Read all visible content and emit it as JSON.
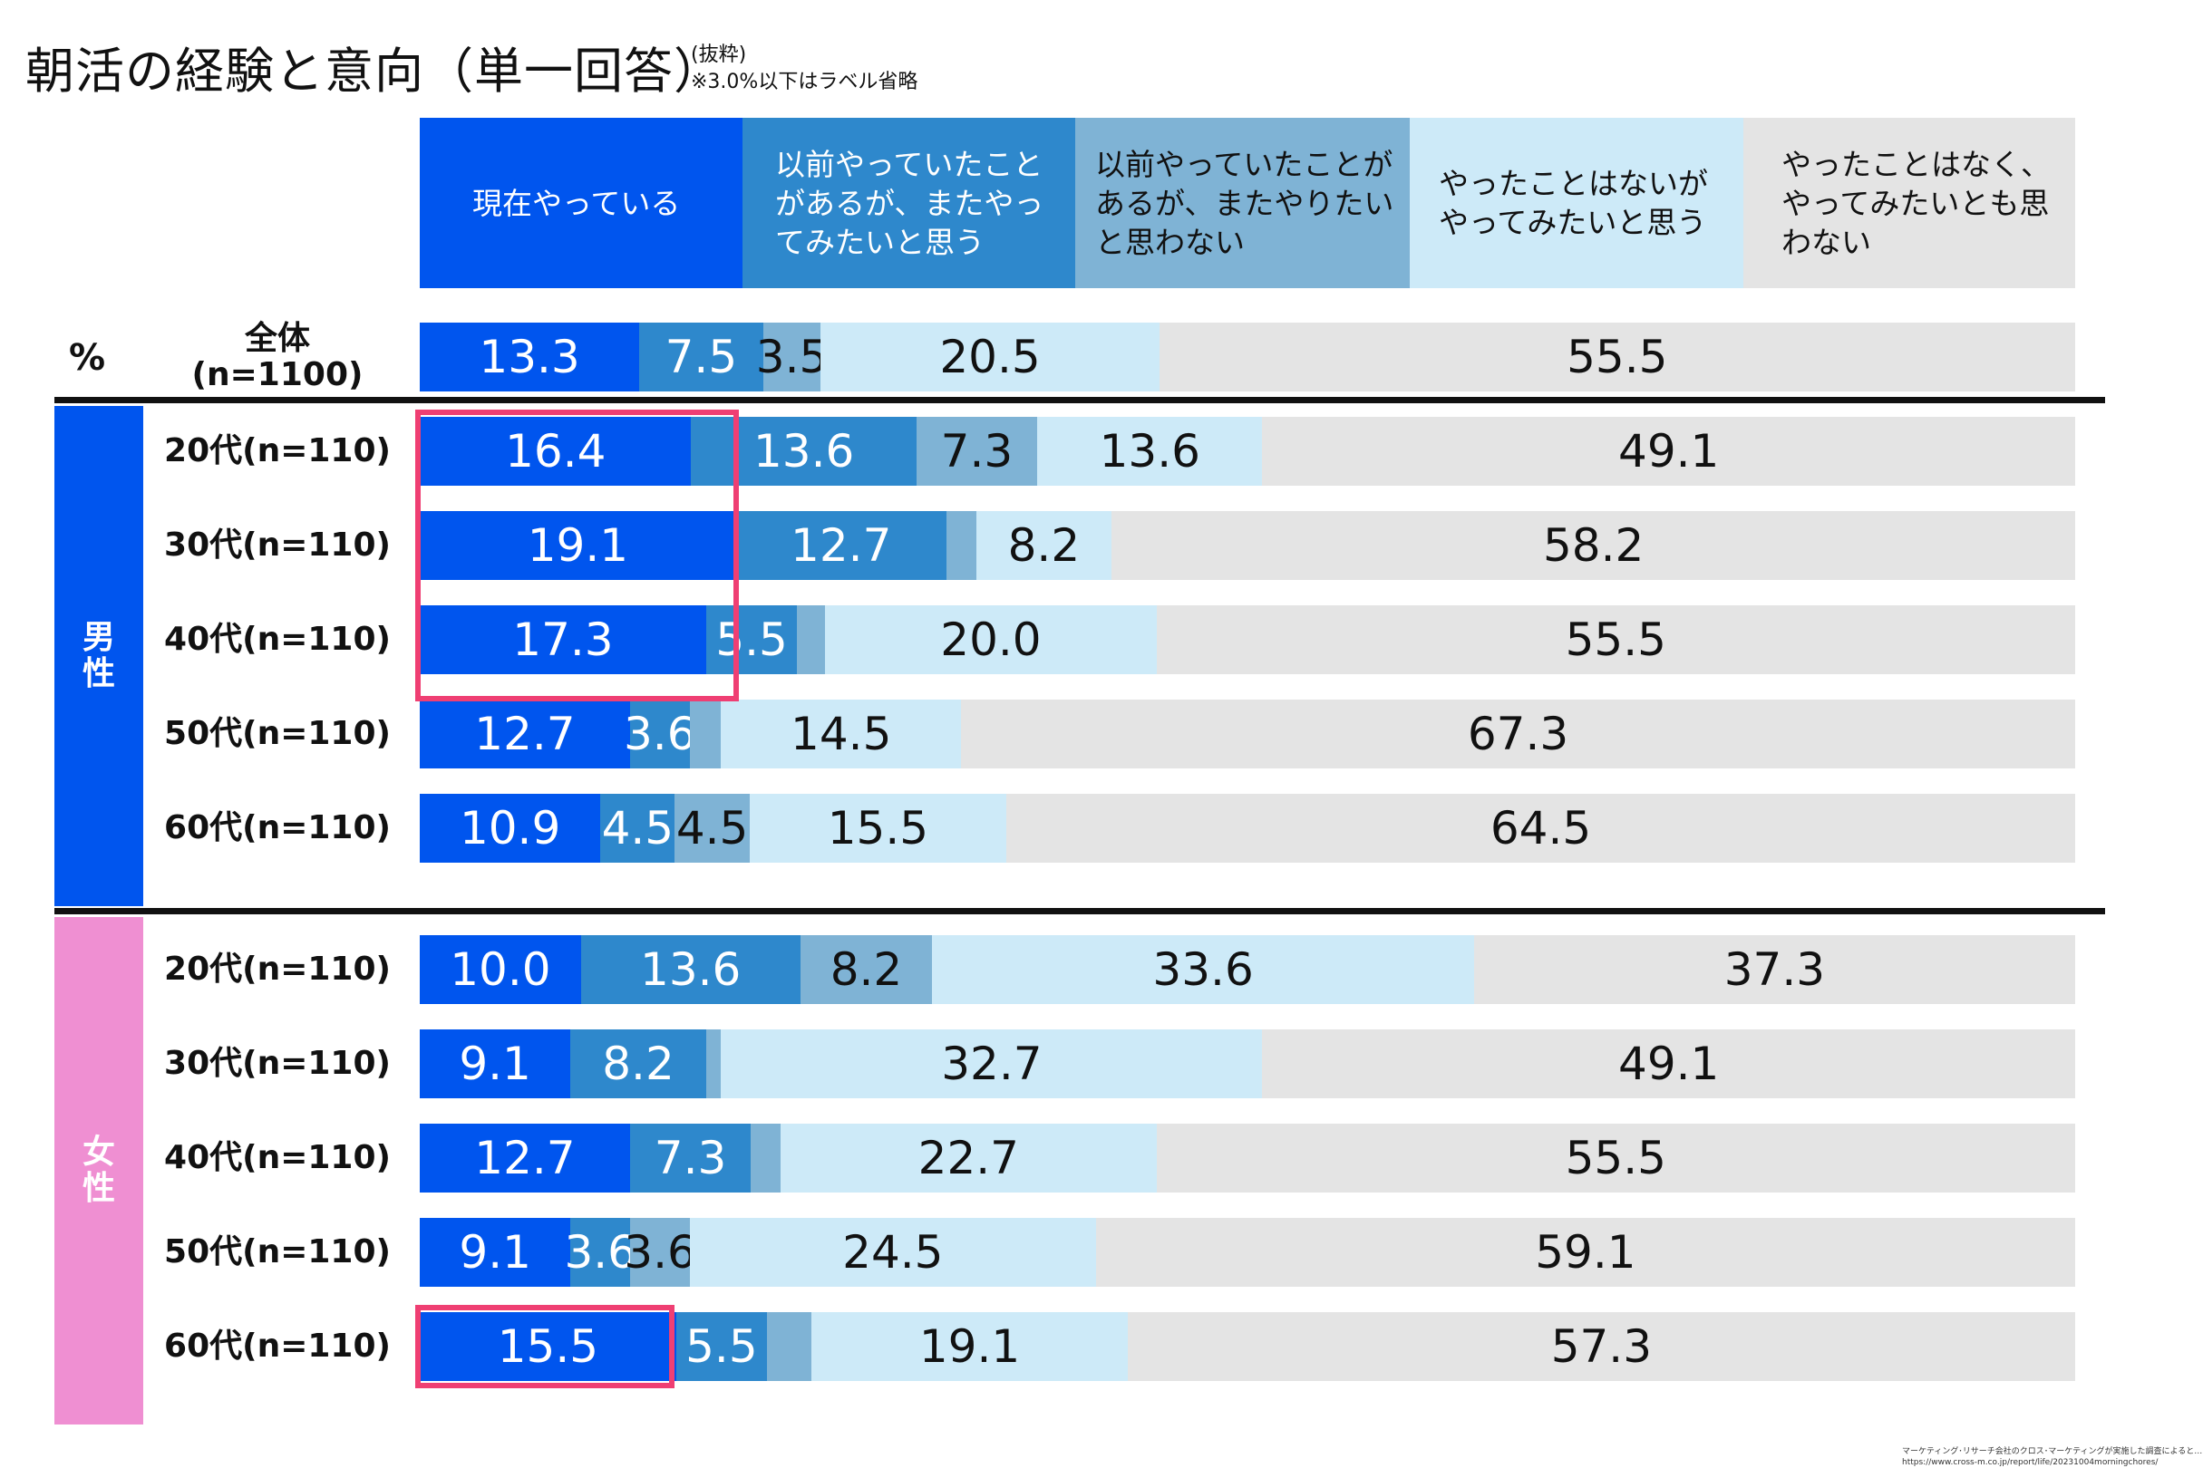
{
  "title": "朝活の経験と意向（単一回答）",
  "note_line1": "(抜粋)",
  "note_line2": "※3.0%以下はラベル省略",
  "unit_label": "%",
  "colors": {
    "series": [
      "#0055ee",
      "#2e88cc",
      "#7fb3d5",
      "#cdeaf8",
      "#e4e4e4"
    ],
    "male_band": "#0055ee",
    "female_band": "#ef8fd2",
    "highlight": "#ef3f73"
  },
  "groups": [
    {
      "name": "男性",
      "key": "male"
    },
    {
      "name": "女性",
      "key": "female"
    }
  ],
  "chart_data": {
    "type": "bar",
    "stacked": true,
    "orientation": "horizontal",
    "xlim": [
      0,
      100
    ],
    "label_threshold": 3.0,
    "series": [
      {
        "name": "現在やっている"
      },
      {
        "name": "以前やっていたことがあるが、またやってみたいと思う"
      },
      {
        "name": "以前やっていたことがあるが、またやりたいと思わない"
      },
      {
        "name": "やったことはないがやってみたいと思う"
      },
      {
        "name": "やったことはなく、やってみたいとも思わない"
      }
    ],
    "rows": [
      {
        "label": "全体\n(n=1100)",
        "group": "all",
        "values": [
          13.3,
          7.5,
          3.5,
          20.5,
          55.5
        ],
        "labels": [
          "13.3",
          "7.5",
          "3.5",
          "20.5",
          "55.5"
        ]
      },
      {
        "label": "20代(n=110)",
        "group": "male",
        "values": [
          16.4,
          13.6,
          7.3,
          13.6,
          49.1
        ],
        "labels": [
          "16.4",
          "13.6",
          "7.3",
          "13.6",
          "49.1"
        ]
      },
      {
        "label": "30代(n=110)",
        "group": "male",
        "values": [
          19.1,
          12.7,
          1.8,
          8.2,
          58.2
        ],
        "labels": [
          "19.1",
          "12.7",
          "",
          "8.2",
          "58.2"
        ]
      },
      {
        "label": "40代(n=110)",
        "group": "male",
        "values": [
          17.3,
          5.5,
          1.7,
          20.0,
          55.5
        ],
        "labels": [
          "17.3",
          "5.5",
          "",
          "20.0",
          "55.5"
        ]
      },
      {
        "label": "50代(n=110)",
        "group": "male",
        "values": [
          12.7,
          3.6,
          1.9,
          14.5,
          67.3
        ],
        "labels": [
          "12.7",
          "3.6",
          "",
          "14.5",
          "67.3"
        ]
      },
      {
        "label": "60代(n=110)",
        "group": "male",
        "values": [
          10.9,
          4.5,
          4.5,
          15.5,
          64.5
        ],
        "labels": [
          "10.9",
          "4.5",
          "4.5",
          "15.5",
          "64.5"
        ]
      },
      {
        "label": "20代(n=110)",
        "group": "female",
        "values": [
          10.0,
          13.6,
          8.2,
          33.6,
          37.3
        ],
        "labels": [
          "10.0",
          "13.6",
          "8.2",
          "33.6",
          "37.3"
        ]
      },
      {
        "label": "30代(n=110)",
        "group": "female",
        "values": [
          9.1,
          8.2,
          0.9,
          32.7,
          49.1
        ],
        "labels": [
          "9.1",
          "8.2",
          "",
          "32.7",
          "49.1"
        ]
      },
      {
        "label": "40代(n=110)",
        "group": "female",
        "values": [
          12.7,
          7.3,
          1.8,
          22.7,
          55.5
        ],
        "labels": [
          "12.7",
          "7.3",
          "",
          "22.7",
          "55.5"
        ]
      },
      {
        "label": "50代(n=110)",
        "group": "female",
        "values": [
          9.1,
          3.6,
          3.6,
          24.5,
          59.1
        ],
        "labels": [
          "9.1",
          "3.6",
          "3.6",
          "24.5",
          "59.1"
        ]
      },
      {
        "label": "60代(n=110)",
        "group": "female",
        "values": [
          15.5,
          5.5,
          2.7,
          19.1,
          57.3
        ],
        "labels": [
          "15.5",
          "5.5",
          "",
          "19.1",
          "57.3"
        ]
      }
    ]
  },
  "footnote_line1": "マーケティング･リサーチ会社のクロス･マーケティングが実施した調査によると…",
  "footnote_line2": "https://www.cross-m.co.jp/report/life/20231004morningchores/"
}
